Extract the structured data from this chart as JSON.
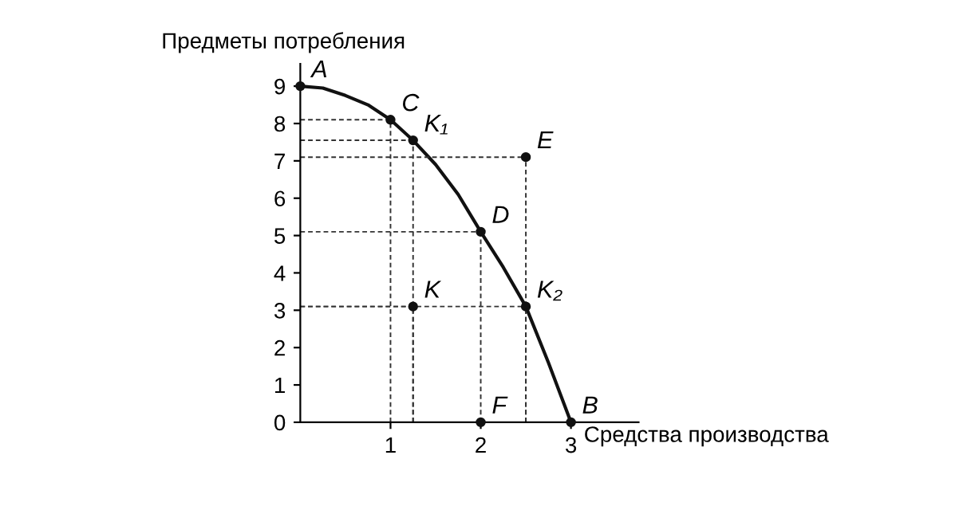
{
  "chart_data": {
    "type": "line",
    "xlabel": "Средства производства",
    "ylabel": "Предметы потребления",
    "xlim": [
      0,
      3.75
    ],
    "ylim": [
      0,
      9.6
    ],
    "xticks": [
      1,
      2,
      3
    ],
    "yticks": [
      0,
      1,
      2,
      3,
      4,
      5,
      6,
      7,
      8,
      9
    ],
    "series": [
      {
        "color": "#111111",
        "marker": "none",
        "x": [
          0,
          0.25,
          0.5,
          0.75,
          1,
          1.25,
          1.5,
          1.75,
          2,
          2.25,
          2.5,
          2.75,
          3
        ],
        "values": [
          9,
          8.95,
          8.75,
          8.5,
          8.1,
          7.55,
          6.9,
          6.1,
          5.1,
          4.15,
          3.1,
          1.6,
          0
        ]
      },
      {
        "type": "scatter",
        "color": "#111111",
        "marker": "circle",
        "x": [
          0,
          1,
          1.25,
          2,
          2.5,
          3,
          2.5,
          1.25,
          2
        ],
        "values": [
          9,
          8.1,
          7.55,
          5.1,
          3.1,
          0,
          7.1,
          3.1,
          0
        ]
      }
    ],
    "annotations": [
      {
        "text": "A",
        "x": 0,
        "y": 9
      },
      {
        "text": "C",
        "x": 1,
        "y": 8.1
      },
      {
        "text": "K₁",
        "x": 1.25,
        "y": 7.55
      },
      {
        "text": "D",
        "x": 2,
        "y": 5.1
      },
      {
        "text": "K₂",
        "x": 2.5,
        "y": 3.1
      },
      {
        "text": "B",
        "x": 3,
        "y": 0
      },
      {
        "text": "E",
        "x": 2.5,
        "y": 7.1
      },
      {
        "text": "K",
        "x": 1.25,
        "y": 3.1
      },
      {
        "text": "F",
        "x": 2,
        "y": 0
      }
    ]
  }
}
